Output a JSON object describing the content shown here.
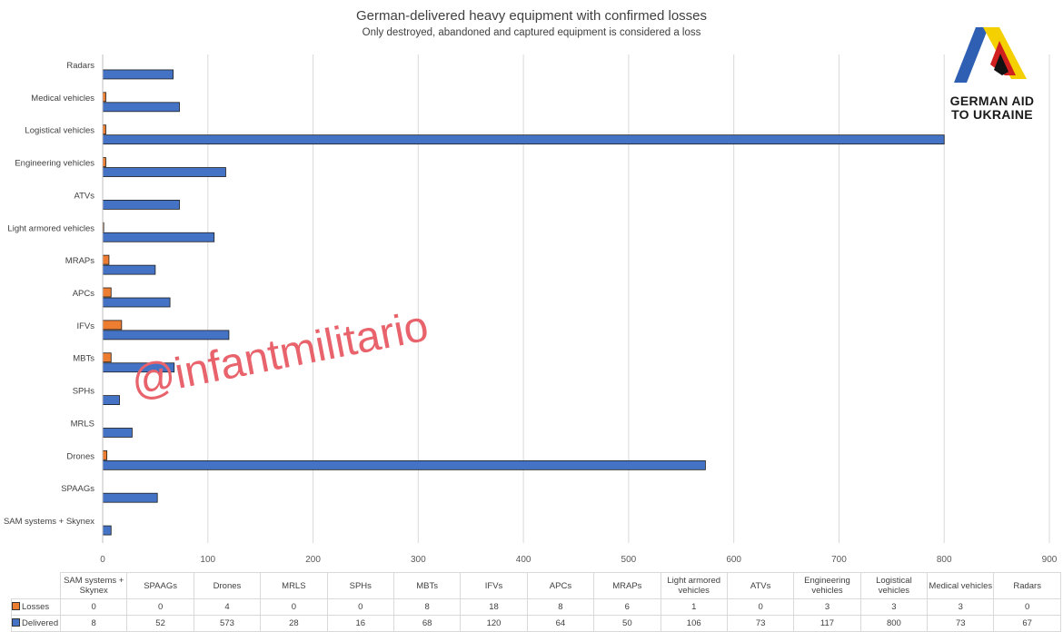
{
  "title": "German-delivered heavy equipment with confirmed losses",
  "subtitle": "Only destroyed, abandoned and captured equipment is considered a loss",
  "watermark": "@infantmilitario",
  "logo": {
    "line1": "GERMAN AID",
    "line2": "TO UKRAINE"
  },
  "colors": {
    "losses": "#ed7d31",
    "delivered": "#4472c4"
  },
  "chart_data": {
    "type": "bar",
    "orientation": "horizontal",
    "categories": [
      "SAM systems + Skynex",
      "SPAAGs",
      "Drones",
      "MRLS",
      "SPHs",
      "MBTs",
      "IFVs",
      "APCs",
      "MRAPs",
      "Light armored vehicles",
      "ATVs",
      "Engineering vehicles",
      "Logistical vehicles",
      "Medical vehicles",
      "Radars"
    ],
    "series": [
      {
        "name": "Losses",
        "values": [
          0,
          0,
          4,
          0,
          0,
          8,
          18,
          8,
          6,
          1,
          0,
          3,
          3,
          3,
          0
        ]
      },
      {
        "name": "Delivered",
        "values": [
          8,
          52,
          573,
          28,
          16,
          68,
          120,
          64,
          50,
          106,
          73,
          117,
          800,
          73,
          67
        ]
      }
    ],
    "xlim": [
      0,
      900
    ],
    "xticks": [
      0,
      100,
      200,
      300,
      400,
      500,
      600,
      700,
      800,
      900
    ],
    "grid": true,
    "data_table": true
  }
}
